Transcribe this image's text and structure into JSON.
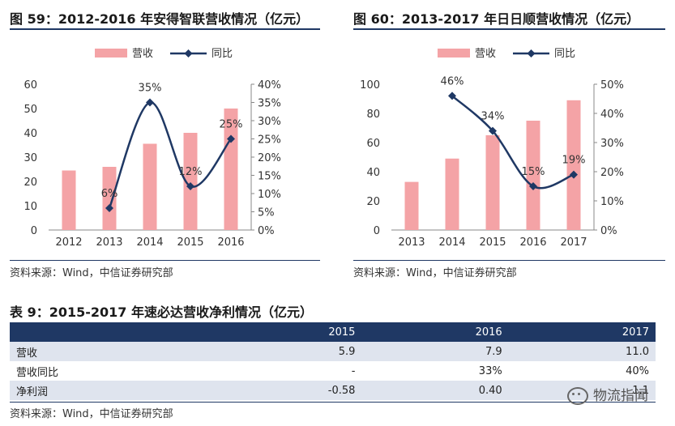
{
  "charts": {
    "left_title": "图 59：2012-2016 年安得智联营收情况（亿元）",
    "right_title": "图 60：2013-2017 年日日顺营收情况（亿元）",
    "source_left": "资料来源：Wind，中信证券研究部",
    "source_right": "资料来源：Wind，中信证券研究部"
  },
  "chart_data": [
    {
      "type": "bar",
      "title": "图 59：2012-2016 年安得智联营收情况（亿元）",
      "categories": [
        "2012",
        "2013",
        "2014",
        "2015",
        "2016"
      ],
      "legend": [
        "营收",
        "同比"
      ],
      "y_left": {
        "ticks": [
          "0",
          "10",
          "20",
          "30",
          "40",
          "50",
          "60"
        ],
        "range": [
          0,
          60
        ]
      },
      "y_right": {
        "ticks": [
          "0%",
          "5%",
          "10%",
          "15%",
          "20%",
          "25%",
          "30%",
          "35%",
          "40%"
        ],
        "range": [
          0,
          40
        ]
      },
      "series": [
        {
          "name": "营收",
          "kind": "bar",
          "axis": "left",
          "values": [
            24.5,
            26,
            35.5,
            40,
            50
          ],
          "color": "#f4a3a6"
        },
        {
          "name": "同比",
          "kind": "line",
          "axis": "right",
          "values": [
            null,
            6,
            35,
            12,
            25
          ],
          "labels": [
            "",
            "6%",
            "35%",
            "12%",
            "25%"
          ],
          "color": "#1f3864"
        }
      ],
      "legend_position": "top",
      "grid": false
    },
    {
      "type": "bar",
      "title": "图 60：2013-2017 年日日顺营收情况（亿元）",
      "categories": [
        "2013",
        "2014",
        "2015",
        "2016",
        "2017"
      ],
      "legend": [
        "营收",
        "同比"
      ],
      "y_left": {
        "ticks": [
          "0",
          "20",
          "40",
          "60",
          "80",
          "100"
        ],
        "range": [
          0,
          100
        ]
      },
      "y_right": {
        "ticks": [
          "0%",
          "10%",
          "20%",
          "30%",
          "40%",
          "50%"
        ],
        "range": [
          0,
          50
        ]
      },
      "series": [
        {
          "name": "营收",
          "kind": "bar",
          "axis": "left",
          "values": [
            33,
            49,
            65,
            75,
            89
          ],
          "color": "#f4a3a6"
        },
        {
          "name": "同比",
          "kind": "line",
          "axis": "right",
          "values": [
            null,
            46,
            34,
            15,
            19
          ],
          "labels": [
            "",
            "46%",
            "34%",
            "15%",
            "19%"
          ],
          "color": "#1f3864"
        }
      ],
      "legend_position": "top",
      "grid": false
    }
  ],
  "table": {
    "title": "表 9：2015-2017 年速必达营收净利情况（亿元）",
    "header": [
      "",
      "2015",
      "2016",
      "2017"
    ],
    "rows": [
      {
        "label": "营收",
        "values": [
          "5.9",
          "7.9",
          "11.0"
        ]
      },
      {
        "label": "营收同比",
        "values": [
          "-",
          "33%",
          "40%"
        ]
      },
      {
        "label": "净利润",
        "values": [
          "-0.58",
          "0.40",
          "1.1"
        ]
      }
    ],
    "source": "资料来源：Wind，中信证券研究部"
  },
  "watermark": "物流指闻",
  "colors": {
    "bar": "#f4a3a6",
    "line": "#1f3864",
    "header_bg": "#1f3864",
    "row_bg": "#dfe4ee"
  }
}
